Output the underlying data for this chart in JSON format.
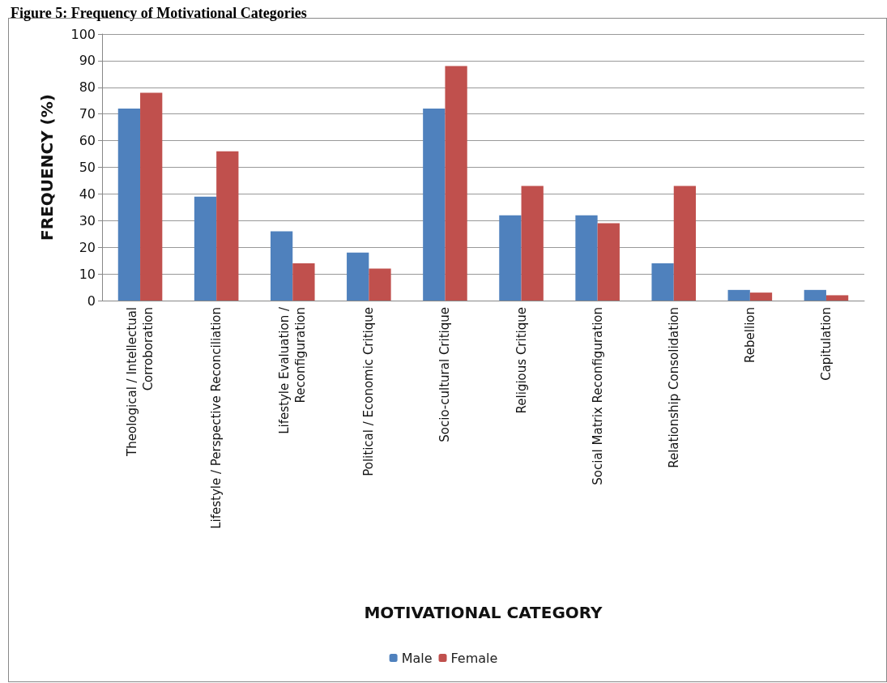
{
  "chart_data": {
    "type": "bar",
    "title": "Figure 5: Frequency of Motivational Categories",
    "xlabel": "MOTIVATIONAL CATEGORY",
    "ylabel": "FREQUENCY (%)",
    "categories": [
      "Theological / Intellectual\nCorroboration",
      "Lifestyle / Perspective Reconciliation",
      "Lifestyle Evaluation /\nReconfiguration",
      "Political / Economic Critique",
      "Socio-cultural Critique",
      "Religious Critique",
      "Social Matrix Reconfiguration",
      "Relationship Consolidation",
      "Rebellion",
      "Capitulation"
    ],
    "series": [
      {
        "name": "Male",
        "color": "#4f81bd",
        "values": [
          72,
          39,
          26,
          18,
          72,
          32,
          32,
          14,
          4,
          4
        ]
      },
      {
        "name": "Female",
        "color": "#c0504d",
        "values": [
          78,
          56,
          14,
          12,
          88,
          43,
          29,
          43,
          3,
          2
        ]
      }
    ],
    "ylim": [
      0,
      100
    ],
    "yticks": [
      0,
      10,
      20,
      30,
      40,
      50,
      60,
      70,
      80,
      90,
      100
    ],
    "grid": "y",
    "legend": "bottom"
  }
}
